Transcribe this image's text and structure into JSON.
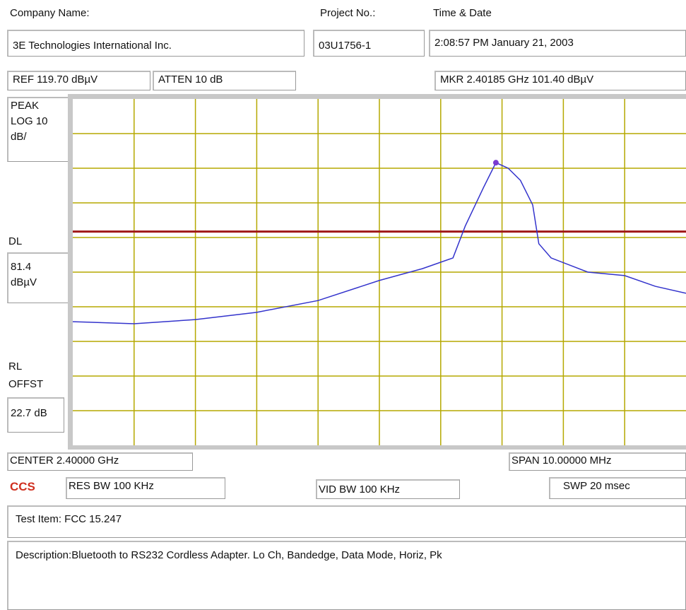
{
  "header": {
    "company_label": "Company Name:",
    "company": "3E Technologies International Inc.",
    "project_label": "Project No.:",
    "project": "03U1756-1",
    "time_label": "Time & Date",
    "time": "2:08:57 PM January 21, 2003"
  },
  "settings": {
    "ref": "REF 119.70 dBµV",
    "atten": "ATTEN 10 dB",
    "marker": "MKR 2.40185 GHz   101.40 dBµV",
    "peak": [
      "PEAK",
      "LOG 10",
      "dB/"
    ],
    "dl_label": "DL",
    "rl_label": [
      "RL",
      "OFFST"
    ],
    "rl_offset": "22.7 dB",
    "center": "CENTER 2.40000 GHz",
    "span": "SPAN 10.00000 MHz",
    "logo": "CCS",
    "res_bw": "RES BW 100 KHz",
    "vid_bw": "VID BW 100 KHz",
    "swp": "SWP  20 msec"
  },
  "dl": {
    "value": 81.4,
    "unit": "dBµV",
    "color": "#a01818"
  },
  "trace": {
    "color": "#3333cc",
    "xlim": [
      2.395,
      2.405
    ],
    "ylim": [
      19.7,
      119.7
    ],
    "x": [
      2.395,
      2.396,
      2.397,
      2.398,
      2.399,
      2.4,
      2.4007,
      2.4012,
      2.4014,
      2.4017,
      2.4019,
      2.4021,
      2.4023,
      2.4025,
      2.4026,
      2.4028,
      2.4034,
      2.404,
      2.4045,
      2.405
    ],
    "values": [
      55.4,
      54.8,
      56.0,
      58.1,
      61.5,
      67.3,
      70.7,
      73.8,
      83.0,
      94.2,
      101.3,
      99.7,
      96.2,
      89.1,
      77.9,
      73.8,
      69.7,
      68.7,
      65.6,
      63.6
    ]
  },
  "footer": {
    "test_item": "Test Item: FCC 15.247",
    "description": "Description:Bluetooth to RS232 Cordless Adapter. Lo Ch, Bandedge, Data Mode, Horiz, Pk"
  }
}
